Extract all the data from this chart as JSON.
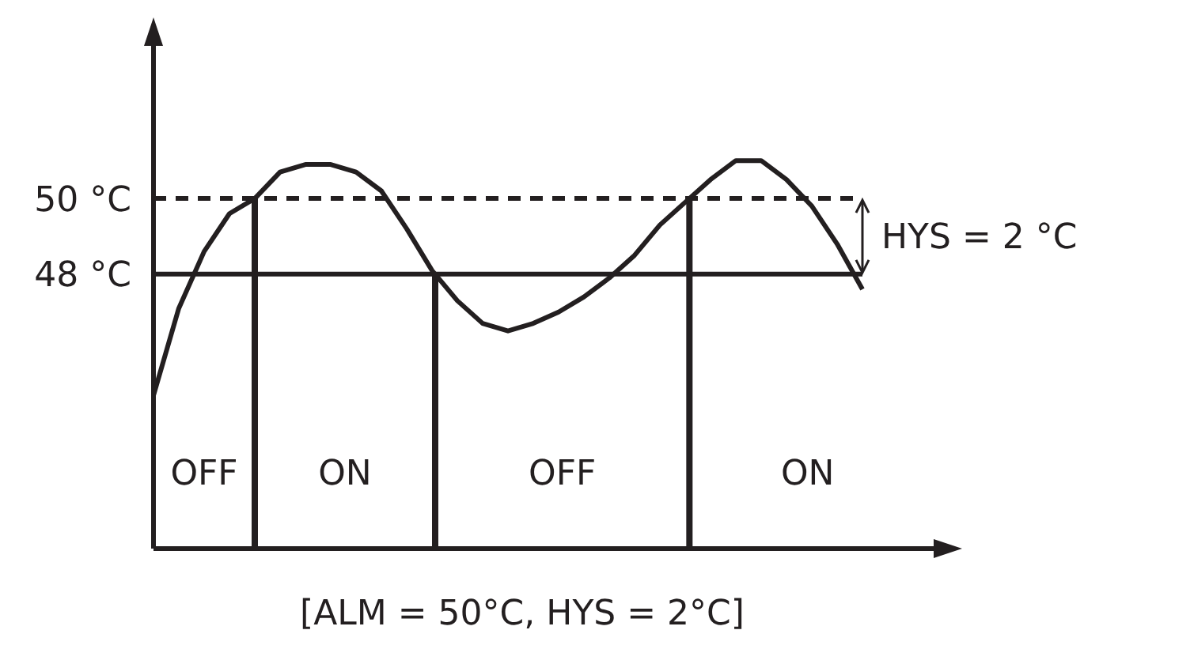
{
  "chart_data": {
    "type": "line",
    "categories": [
      null,
      null,
      null,
      null,
      null,
      null,
      null,
      null,
      null,
      null,
      null,
      null,
      null,
      null,
      null,
      null,
      null,
      null,
      null,
      null,
      null,
      null,
      null,
      null,
      null,
      null,
      null,
      null,
      null
    ],
    "series": [
      {
        "color": "#231f20",
        "values": [
          44.8,
          47.1,
          48.6,
          49.6,
          50.0,
          50.7,
          50.9,
          50.9,
          50.7,
          50.2,
          49.2,
          48.1,
          47.3,
          46.7,
          46.5,
          46.7,
          47.0,
          47.4,
          47.9,
          48.5,
          49.3,
          49.9,
          50.5,
          51.0,
          51.0,
          50.5,
          49.8,
          48.8,
          47.6
        ]
      }
    ],
    "ylim": [
      40.75,
      54.2
    ],
    "yticks": [
      {
        "value": 50,
        "label": "50 °C"
      },
      {
        "value": 48,
        "label": "48 °C"
      }
    ],
    "tick_labels": "y",
    "marker": "none",
    "line_style": "solid",
    "ref_lines": [
      {
        "axis": "y",
        "value": 50,
        "line_style": "dashed",
        "color": "#231f20"
      },
      {
        "axis": "y",
        "value": 48,
        "line_style": "solid",
        "color": "#231f20"
      }
    ],
    "annotations": [
      "OFF",
      "ON",
      "OFF",
      "ON",
      "HYS = 2 °C",
      "[ALM = 50°C, HYS = 2°C]"
    ]
  }
}
